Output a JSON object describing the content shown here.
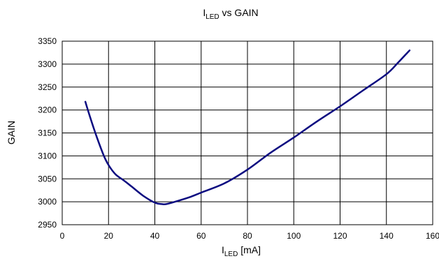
{
  "chart_data": {
    "type": "line",
    "title": {
      "main": "I",
      "sub": "LED",
      "rest": " vs GAIN"
    },
    "xlabel": {
      "main": "I",
      "sub": "LED",
      "rest": " [mA]"
    },
    "ylabel": "GAIN",
    "xlim": [
      0,
      160
    ],
    "ylim": [
      2950,
      3350
    ],
    "x_ticks": [
      0,
      20,
      40,
      60,
      80,
      100,
      120,
      140,
      160
    ],
    "y_ticks": [
      2950,
      3000,
      3050,
      3100,
      3150,
      3200,
      3250,
      3300,
      3350
    ],
    "grid": true,
    "legend": "none",
    "series": [
      {
        "color": "#0a0a80",
        "x": [
          10,
          12,
          15,
          18,
          20,
          23,
          27,
          30,
          35,
          40,
          43,
          45,
          50,
          55,
          60,
          70,
          80,
          90,
          100,
          110,
          120,
          130,
          140,
          145,
          150
        ],
        "y": [
          3218,
          3185,
          3140,
          3100,
          3080,
          3060,
          3045,
          3033,
          3013,
          2998,
          2995,
          2995,
          3002,
          3010,
          3020,
          3040,
          3070,
          3107,
          3140,
          3175,
          3208,
          3243,
          3278,
          3303,
          3330
        ]
      }
    ]
  }
}
